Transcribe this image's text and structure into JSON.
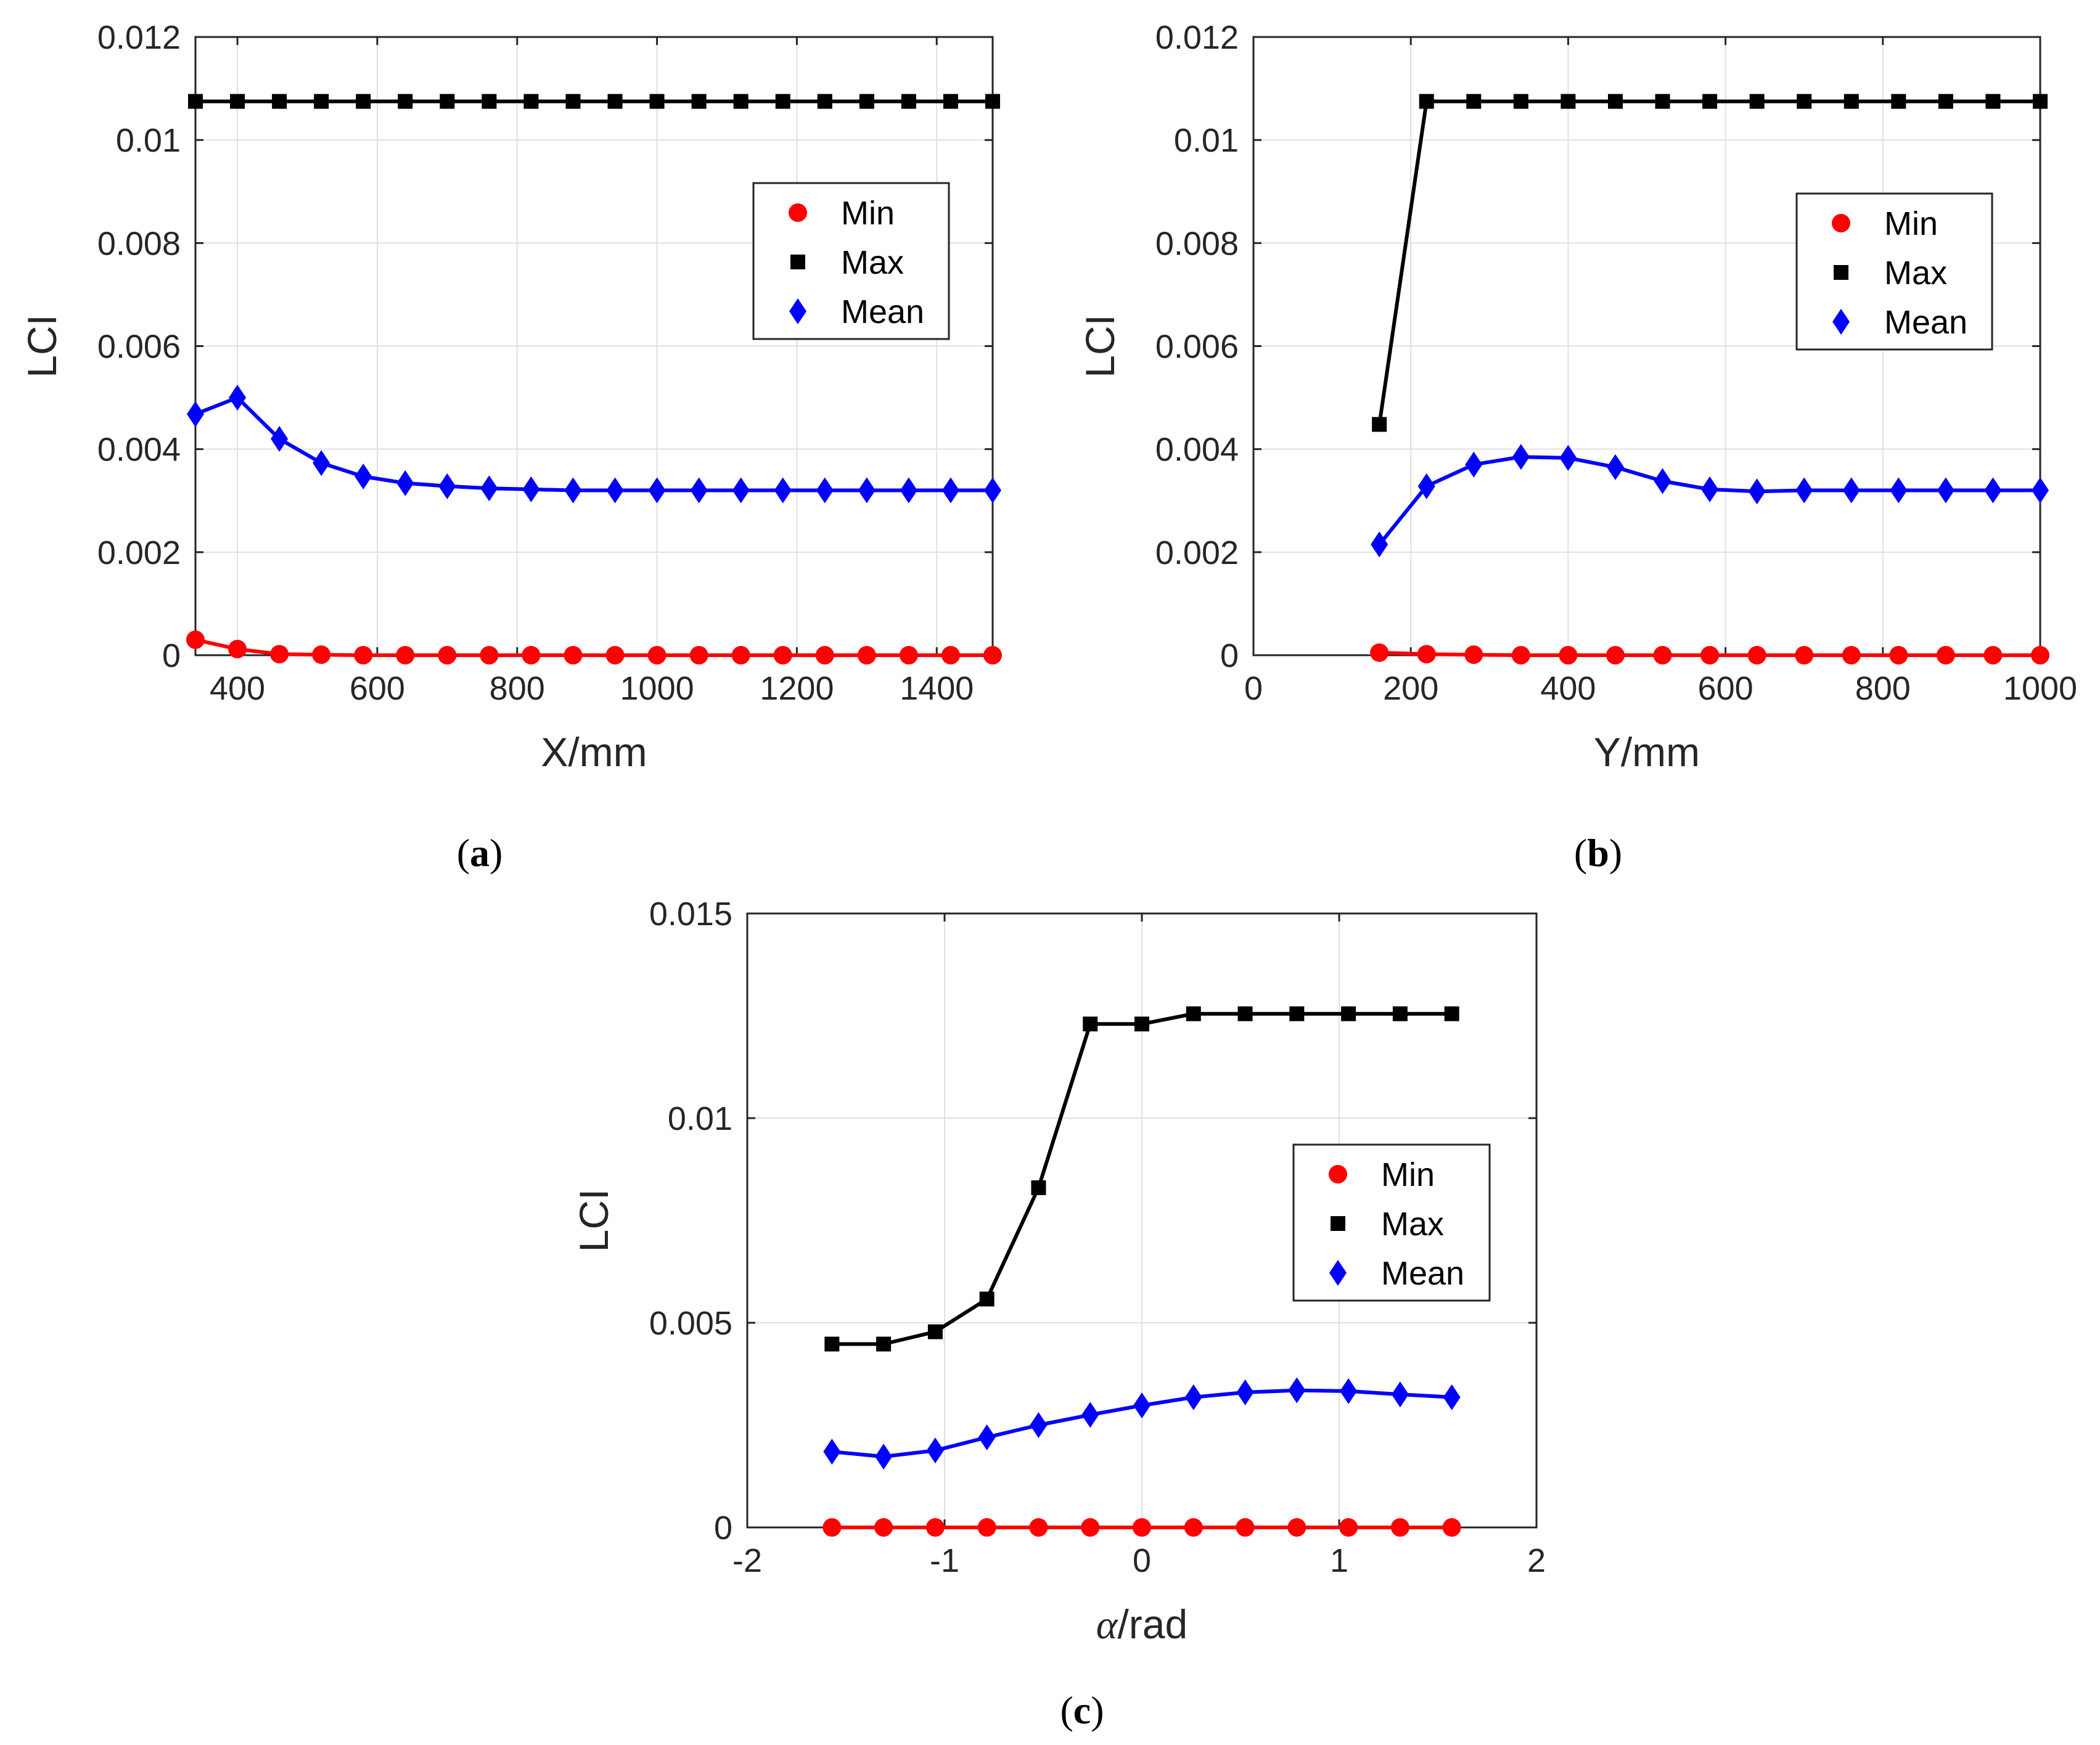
{
  "colors": {
    "min": "#ff0000",
    "max": "#000000",
    "mean": "#0000ff"
  },
  "chart_data": [
    {
      "type": "line",
      "panel": "a",
      "caption": "a",
      "xlabel": "X/mm",
      "ylabel": "LCI",
      "xlim": [
        340,
        1480
      ],
      "ylim": [
        0,
        0.012
      ],
      "xticks": [
        400,
        600,
        800,
        1000,
        1200,
        1400
      ],
      "xtick_labels": [
        "400",
        "600",
        "800",
        "1000",
        "1200",
        "1400"
      ],
      "yticks": [
        0,
        0.002,
        0.004,
        0.006,
        0.008,
        0.01,
        0.012
      ],
      "ytick_labels": [
        "0",
        "0.002",
        "0.004",
        "0.006",
        "0.008",
        "0.01",
        "0.012"
      ],
      "grid": true,
      "legend": "upper-right",
      "x": [
        340,
        400,
        460,
        520,
        580,
        640,
        700,
        760,
        820,
        880,
        940,
        1000,
        1060,
        1120,
        1180,
        1240,
        1300,
        1360,
        1420,
        1480
      ],
      "series": [
        {
          "name": "Min",
          "marker": "circle",
          "color": "#ff0000",
          "values": [
            0.0003,
            0.00012,
            2e-05,
            1e-05,
            0,
            0,
            0,
            0,
            0,
            0,
            0,
            0,
            0,
            0,
            0,
            0,
            0,
            0,
            0,
            0
          ]
        },
        {
          "name": "Max",
          "marker": "square",
          "color": "#000000",
          "values": [
            0.01075,
            0.01075,
            0.01075,
            0.01075,
            0.01075,
            0.01075,
            0.01075,
            0.01075,
            0.01075,
            0.01075,
            0.01075,
            0.01075,
            0.01075,
            0.01075,
            0.01075,
            0.01075,
            0.01075,
            0.01075,
            0.01075,
            0.01075
          ]
        },
        {
          "name": "Mean",
          "marker": "diamond",
          "color": "#0000ff",
          "values": [
            0.00468,
            0.005,
            0.0042,
            0.00373,
            0.00347,
            0.00334,
            0.00328,
            0.00324,
            0.00322,
            0.0032,
            0.0032,
            0.0032,
            0.0032,
            0.0032,
            0.0032,
            0.0032,
            0.0032,
            0.0032,
            0.0032,
            0.0032
          ]
        }
      ]
    },
    {
      "type": "line",
      "panel": "b",
      "caption": "b",
      "xlabel": "Y/mm",
      "ylabel": "LCI",
      "xlim": [
        0,
        1000
      ],
      "ylim": [
        0,
        0.012
      ],
      "xticks": [
        0,
        200,
        400,
        600,
        800,
        1000
      ],
      "xtick_labels": [
        "0",
        "200",
        "400",
        "600",
        "800",
        "1000"
      ],
      "yticks": [
        0,
        0.002,
        0.004,
        0.006,
        0.008,
        0.01,
        0.012
      ],
      "ytick_labels": [
        "0",
        "0.002",
        "0.004",
        "0.006",
        "0.008",
        "0.01",
        "0.012"
      ],
      "grid": true,
      "legend": "upper-right",
      "x": [
        160,
        220,
        280,
        340,
        400,
        460,
        520,
        580,
        640,
        700,
        760,
        820,
        880,
        940,
        1000
      ],
      "series": [
        {
          "name": "Min",
          "marker": "circle",
          "color": "#ff0000",
          "values": [
            5e-05,
            2e-05,
            1e-05,
            0,
            0,
            0,
            0,
            0,
            0,
            0,
            0,
            0,
            0,
            0,
            0
          ]
        },
        {
          "name": "Max",
          "marker": "square",
          "color": "#000000",
          "values": [
            0.00448,
            0.01075,
            0.01075,
            0.01075,
            0.01075,
            0.01075,
            0.01075,
            0.01075,
            0.01075,
            0.01075,
            0.01075,
            0.01075,
            0.01075,
            0.01075,
            0.01075
          ]
        },
        {
          "name": "Mean",
          "marker": "diamond",
          "color": "#0000ff",
          "values": [
            0.00215,
            0.00328,
            0.0037,
            0.00385,
            0.00383,
            0.00365,
            0.00338,
            0.00322,
            0.00318,
            0.0032,
            0.0032,
            0.0032,
            0.0032,
            0.0032,
            0.0032
          ]
        }
      ]
    },
    {
      "type": "line",
      "panel": "c",
      "caption": "c",
      "xlabel_symbol": "α",
      "xlabel_unit": "/rad",
      "ylabel": "LCI",
      "xlim": [
        -2,
        2
      ],
      "ylim": [
        0,
        0.015
      ],
      "xticks": [
        -2,
        -1,
        0,
        1,
        2
      ],
      "xtick_labels": [
        "-2",
        "-1",
        "0",
        "1",
        "2"
      ],
      "yticks": [
        0,
        0.005,
        0.01,
        0.015
      ],
      "ytick_labels": [
        "0",
        "0.005",
        "0.01",
        "0.015"
      ],
      "grid": true,
      "legend": "right",
      "x": [
        -1.5708,
        -1.309,
        -1.0472,
        -0.7854,
        -0.5236,
        -0.2618,
        0,
        0.2618,
        0.5236,
        0.7854,
        1.0472,
        1.309,
        1.5708
      ],
      "series": [
        {
          "name": "Min",
          "marker": "circle",
          "color": "#ff0000",
          "values": [
            0,
            0,
            0,
            0,
            0,
            0,
            0,
            0,
            0,
            0,
            0,
            0,
            0
          ]
        },
        {
          "name": "Max",
          "marker": "square",
          "color": "#000000",
          "values": [
            0.00448,
            0.00448,
            0.00478,
            0.00558,
            0.0083,
            0.0123,
            0.0123,
            0.01255,
            0.01255,
            0.01255,
            0.01255,
            0.01255,
            0.01255
          ]
        },
        {
          "name": "Mean",
          "marker": "diamond",
          "color": "#0000ff",
          "values": [
            0.00185,
            0.00173,
            0.00188,
            0.0022,
            0.0025,
            0.00275,
            0.00298,
            0.00318,
            0.0033,
            0.00335,
            0.00333,
            0.00325,
            0.00318
          ]
        }
      ]
    }
  ]
}
